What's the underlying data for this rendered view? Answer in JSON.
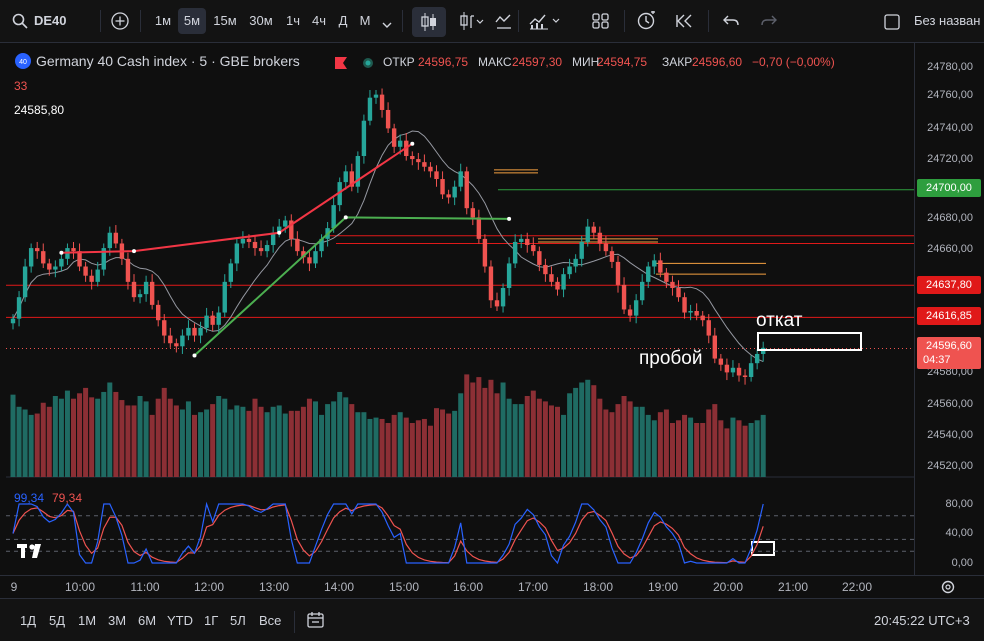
{
  "toolbar": {
    "symbol": "DE40",
    "intervals": [
      "1м",
      "5м",
      "15м",
      "30м",
      "1ч",
      "4ч",
      "Д",
      "М"
    ],
    "active_interval": "5м",
    "right_label": "Без назван"
  },
  "legend": {
    "title": "Germany 40 Cash index · 5 · GBE brokers",
    "open_label": "ОТКР",
    "open": "24596,75",
    "high_label": "МАКС",
    "high": "24597,30",
    "low_label": "МИН",
    "low": "24594,75",
    "close_label": "ЗАКР",
    "close": "24596,60",
    "change": "−0,70 (−0,00%)",
    "volume_badge": "33",
    "side_price": "24585,80"
  },
  "price_axis": {
    "labels": [
      "24780,00",
      "24760,00",
      "24740,00",
      "24720,00",
      "24680,00",
      "24660,00",
      "24580,00",
      "24560,00",
      "24540,00",
      "24520,00"
    ],
    "badges": [
      {
        "text": "24700,00",
        "color": "#2e9e3e"
      },
      {
        "text": "24637,80",
        "color": "#e01919"
      },
      {
        "text": "24616,85",
        "color": "#e01919"
      },
      {
        "text": "24596,60",
        "color": "#ef5350"
      }
    ],
    "countdown": "04:37"
  },
  "stoch": {
    "k_value": "99,34",
    "d_value": "79,34",
    "levels": [
      "80,00",
      "40,00",
      "0,00"
    ]
  },
  "time_axis": {
    "labels": [
      "9",
      "10:00",
      "11:00",
      "12:00",
      "13:00",
      "14:00",
      "15:00",
      "16:00",
      "17:00",
      "18:00",
      "19:00",
      "20:00",
      "21:00",
      "22:00"
    ]
  },
  "annotations": {
    "pullback": "откат",
    "breakout": "пробой"
  },
  "bottom": {
    "ranges": [
      "1Д",
      "5Д",
      "1М",
      "3М",
      "6М",
      "YTD",
      "1Г",
      "5Л",
      "Все"
    ],
    "clock": "20:45:22 UTC+3"
  },
  "colors": {
    "up": "#26a69a",
    "down": "#ef5350",
    "red_line": "#e01919",
    "green_line": "#2e9e3e"
  },
  "chart_data": {
    "type": "candlestick",
    "price_range": [
      24510,
      24790
    ],
    "close_series": [
      24616,
      24630,
      24650,
      24662,
      24660,
      24652,
      24648,
      24650,
      24655,
      24662,
      24660,
      24650,
      24644,
      24640,
      24648,
      24662,
      24672,
      24665,
      24655,
      24640,
      24630,
      24632,
      24640,
      24625,
      24615,
      24605,
      24600,
      24598,
      24605,
      24610,
      24605,
      24610,
      24618,
      24612,
      24620,
      24640,
      24652,
      24665,
      24668,
      24666,
      24662,
      24660,
      24664,
      24672,
      24676,
      24680,
      24668,
      24660,
      24656,
      24652,
      24660,
      24668,
      24675,
      24690,
      24705,
      24712,
      24702,
      24722,
      24745,
      24760,
      24762,
      24752,
      24740,
      24728,
      24732,
      24722,
      24720,
      24718,
      24715,
      24712,
      24707,
      24697,
      24695,
      24702,
      24712,
      24688,
      24682,
      24668,
      24650,
      24628,
      24624,
      24636,
      24652,
      24666,
      24668,
      24664,
      24660,
      24651,
      24645,
      24640,
      24635,
      24645,
      24650,
      24655,
      24666,
      24676,
      24672,
      24665,
      24660,
      24653,
      24638,
      24622,
      24618,
      24628,
      24640,
      24650,
      24654,
      24646,
      24640,
      24636,
      24630,
      24620,
      24621,
      24618,
      24615,
      24605,
      24590,
      24586,
      24581,
      24584,
      24579,
      24578,
      24587,
      24593,
      24597
    ],
    "volumes": [
      61,
      52,
      50,
      46,
      47,
      55,
      52,
      60,
      58,
      64,
      58,
      62,
      66,
      59,
      58,
      63,
      70,
      63,
      57,
      53,
      53,
      60,
      56,
      46,
      58,
      66,
      58,
      53,
      50,
      56,
      46,
      48,
      50,
      54,
      60,
      58,
      50,
      53,
      52,
      49,
      58,
      52,
      48,
      52,
      53,
      47,
      49,
      49,
      52,
      58,
      56,
      46,
      54,
      56,
      63,
      59,
      54,
      48,
      48,
      43,
      44,
      43,
      40,
      46,
      48,
      44,
      40,
      42,
      43,
      38,
      51,
      50,
      47,
      49,
      62,
      76,
      70,
      74,
      66,
      72,
      62,
      70,
      58,
      54,
      54,
      60,
      64,
      58,
      56,
      53,
      52,
      46,
      62,
      66,
      70,
      72,
      68,
      58,
      50,
      48,
      54,
      60,
      56,
      52,
      52,
      46,
      42,
      48,
      50,
      40,
      42,
      46,
      44,
      40,
      40,
      50,
      54,
      42,
      36,
      44,
      42,
      38,
      40,
      42,
      46
    ]
  }
}
